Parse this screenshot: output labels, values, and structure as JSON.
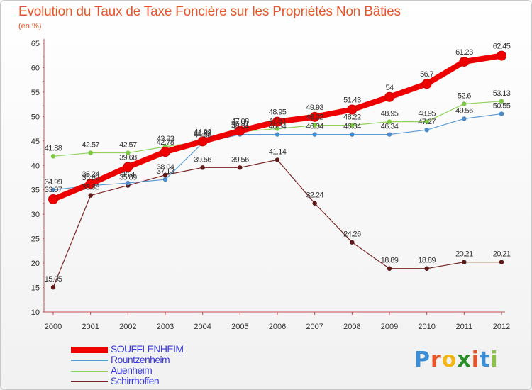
{
  "title": "Evolution du Taux de Taxe Foncière sur les Propriétés Non Bâties",
  "subtitle": "(en %)",
  "logo": {
    "letters": [
      "P",
      "r",
      "o",
      "x",
      "i",
      "t",
      "i"
    ],
    "colors": [
      "#3a8fd9",
      "#e8542a",
      "#f2b619",
      "#2a8f2a",
      "#e8542a",
      "#3a8fd9",
      "#8bc34a"
    ]
  },
  "chart_data": {
    "type": "line",
    "title": "Evolution du Taux de Taxe Foncière sur les Propriétés Non Bâties",
    "ylabel": "(en %)",
    "xlabel": "",
    "ylim": [
      10,
      65
    ],
    "yticks": [
      10,
      15,
      20,
      25,
      30,
      35,
      40,
      45,
      50,
      55,
      60,
      65
    ],
    "x": [
      "2000",
      "2001",
      "2002",
      "2003",
      "2004",
      "2005",
      "2006",
      "2007",
      "2008",
      "2009",
      "2010",
      "2011",
      "2012"
    ],
    "grid": false,
    "legend_position": "bottom-left",
    "series": [
      {
        "name": "SOUFFLENHEIM",
        "color": "#ee0000",
        "values": [
          33.07,
          36.24,
          39.68,
          42.78,
          44.92,
          47.08,
          48.95,
          49.93,
          51.43,
          54,
          56.7,
          61.23,
          62.45
        ],
        "labels": [
          "33.07",
          "36.24",
          "39.68",
          "42.78",
          "44.92",
          "47.08",
          "48.95",
          "49.93",
          "51.43",
          "54",
          "56.7",
          "61.23",
          "62.45"
        ]
      },
      {
        "name": "Rountzenheim",
        "color": "#5b9bd5",
        "values": [
          34.99,
          35.86,
          36.4,
          37.13,
          44.58,
          46.34,
          46.34,
          46.34,
          46.34,
          46.34,
          47.27,
          49.56,
          50.55
        ],
        "labels": [
          "34.99",
          "35.86",
          "36.4",
          "37.13",
          "44.58",
          "46.34",
          "46.34",
          "46.34",
          "46.34",
          "46.34",
          "47.27",
          "49.56",
          "50.55"
        ]
      },
      {
        "name": "Auenheim",
        "color": "#8fd35a",
        "values": [
          41.88,
          42.57,
          42.57,
          43.83,
          44.92,
          46.91,
          47.51,
          48.22,
          48.22,
          48.95,
          48.95,
          52.6,
          53.13
        ],
        "labels": [
          "41.88",
          "42.57",
          "42.57",
          "43.83",
          "44.92",
          "46.91",
          "47.51",
          "48.22",
          "48.22",
          "48.95",
          "48.95",
          "52.6",
          "53.13"
        ]
      },
      {
        "name": "Schirrhoffen",
        "color": "#7a2424",
        "values": [
          15.05,
          33.86,
          35.89,
          38.04,
          39.56,
          39.56,
          41.14,
          32.24,
          24.26,
          18.89,
          18.89,
          20.21,
          20.21
        ],
        "labels": [
          "15.05",
          "33.86",
          "35.89",
          "38.04",
          "39.56",
          "39.56",
          "41.14",
          "32.24",
          "24.26",
          "18.89",
          "18.89",
          "20.21",
          "20.21"
        ]
      }
    ]
  }
}
